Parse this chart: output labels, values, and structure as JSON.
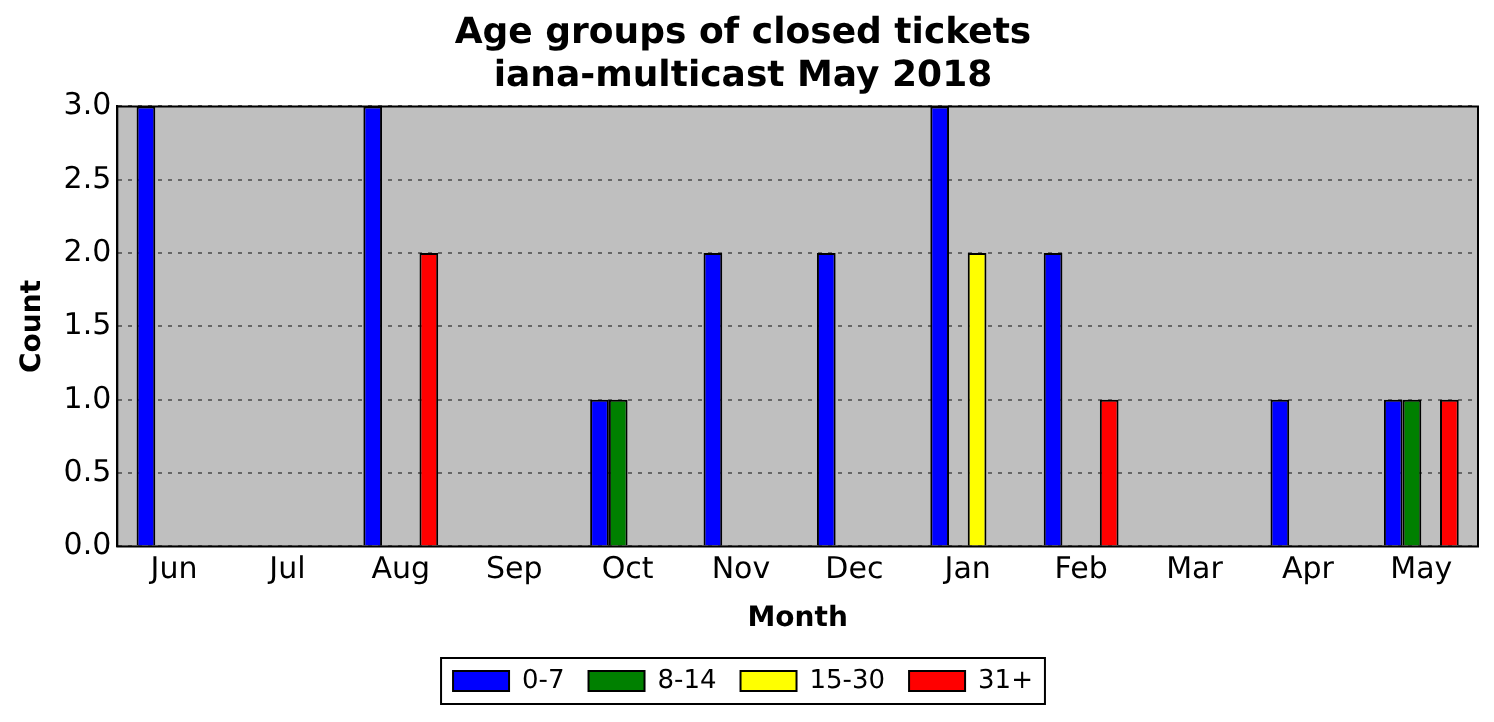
{
  "chart_data": {
    "type": "bar",
    "title": "Age groups of closed tickets\niana-multicast May 2018",
    "xlabel": "Month",
    "ylabel": "Count",
    "categories": [
      "Jun",
      "Jul",
      "Aug",
      "Sep",
      "Oct",
      "Nov",
      "Dec",
      "Jan",
      "Feb",
      "Mar",
      "Apr",
      "May"
    ],
    "series": [
      {
        "name": "0-7",
        "color": "#0000ff",
        "values": [
          3,
          0,
          3,
          0,
          1,
          2,
          2,
          3,
          2,
          0,
          1,
          1
        ]
      },
      {
        "name": "8-14",
        "color": "#008000",
        "values": [
          0,
          0,
          0,
          0,
          1,
          0,
          0,
          0,
          0,
          0,
          0,
          1
        ]
      },
      {
        "name": "15-30",
        "color": "#ffff00",
        "values": [
          0,
          0,
          0,
          0,
          0,
          0,
          0,
          2,
          0,
          0,
          0,
          0
        ]
      },
      {
        "name": "31+",
        "color": "#ff0000",
        "values": [
          0,
          0,
          2,
          0,
          0,
          0,
          0,
          0,
          1,
          0,
          0,
          1
        ]
      }
    ],
    "ylim": [
      0,
      3
    ],
    "yticks": [
      {
        "value": 0,
        "label": "0.0"
      },
      {
        "value": 0.5,
        "label": "0.5"
      },
      {
        "value": 1,
        "label": "1.0"
      },
      {
        "value": 1.5,
        "label": "1.5"
      },
      {
        "value": 2,
        "label": "2.0"
      },
      {
        "value": 2.5,
        "label": "2.5"
      },
      {
        "value": 3,
        "label": "3.0"
      }
    ],
    "grid": "y",
    "legend": "bottom"
  }
}
